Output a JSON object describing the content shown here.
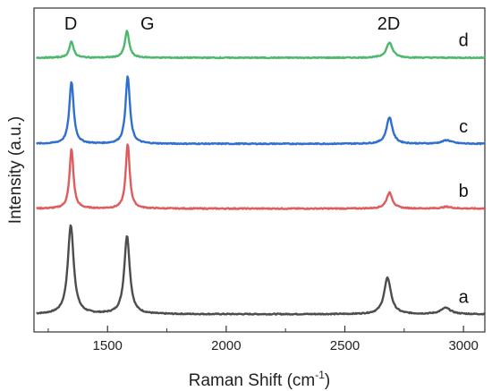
{
  "chart_data": {
    "type": "line",
    "title": "",
    "xlabel": "Raman Shift (cm",
    "xlabel_sup": "-1",
    "xlabel_close": ")",
    "ylabel": "Intensity (a.u.)",
    "xlim": [
      1190,
      3090
    ],
    "x_ticks": [
      1500,
      2000,
      2500,
      3000
    ],
    "x_tick_labels": [
      "1500",
      "2000",
      "2500",
      "3000"
    ],
    "x_minor_ticks": [
      1250,
      1750,
      2250,
      2750
    ],
    "y_ticks_shown": false,
    "grid": false,
    "peak_labels": [
      {
        "text": "D",
        "x": 1345
      },
      {
        "text": "G",
        "x": 1585
      },
      {
        "text": "2D",
        "x": 2685
      }
    ],
    "series": [
      {
        "name": "a",
        "color": "#4d4d4d",
        "offset": 0.0,
        "baseline": 0.0,
        "peaks": [
          {
            "x": 1345,
            "height": 1.0,
            "width": 30
          },
          {
            "x": 1582,
            "height": 0.88,
            "width": 28
          },
          {
            "x": 2680,
            "height": 0.41,
            "width": 35
          },
          {
            "x": 2925,
            "height": 0.07,
            "width": 50
          }
        ]
      },
      {
        "name": "b",
        "color": "#e05b5b",
        "offset": 1.19,
        "baseline": 0.0,
        "peaks": [
          {
            "x": 1348,
            "height": 0.67,
            "width": 20
          },
          {
            "x": 1585,
            "height": 0.73,
            "width": 20
          },
          {
            "x": 2688,
            "height": 0.18,
            "width": 30
          },
          {
            "x": 2930,
            "height": 0.02,
            "width": 50
          }
        ]
      },
      {
        "name": "c",
        "color": "#2f6fd1",
        "offset": 1.92,
        "baseline": 0.0,
        "peaks": [
          {
            "x": 1348,
            "height": 0.7,
            "width": 22
          },
          {
            "x": 1585,
            "height": 0.76,
            "width": 22
          },
          {
            "x": 2688,
            "height": 0.3,
            "width": 30
          },
          {
            "x": 2930,
            "height": 0.04,
            "width": 50
          }
        ]
      },
      {
        "name": "d",
        "color": "#4cb86b",
        "offset": 2.89,
        "baseline": 0.0,
        "peaks": [
          {
            "x": 1348,
            "height": 0.18,
            "width": 22
          },
          {
            "x": 1582,
            "height": 0.3,
            "width": 22
          },
          {
            "x": 2688,
            "height": 0.17,
            "width": 32
          }
        ]
      }
    ],
    "ylim": [
      -0.2,
      3.45
    ]
  }
}
